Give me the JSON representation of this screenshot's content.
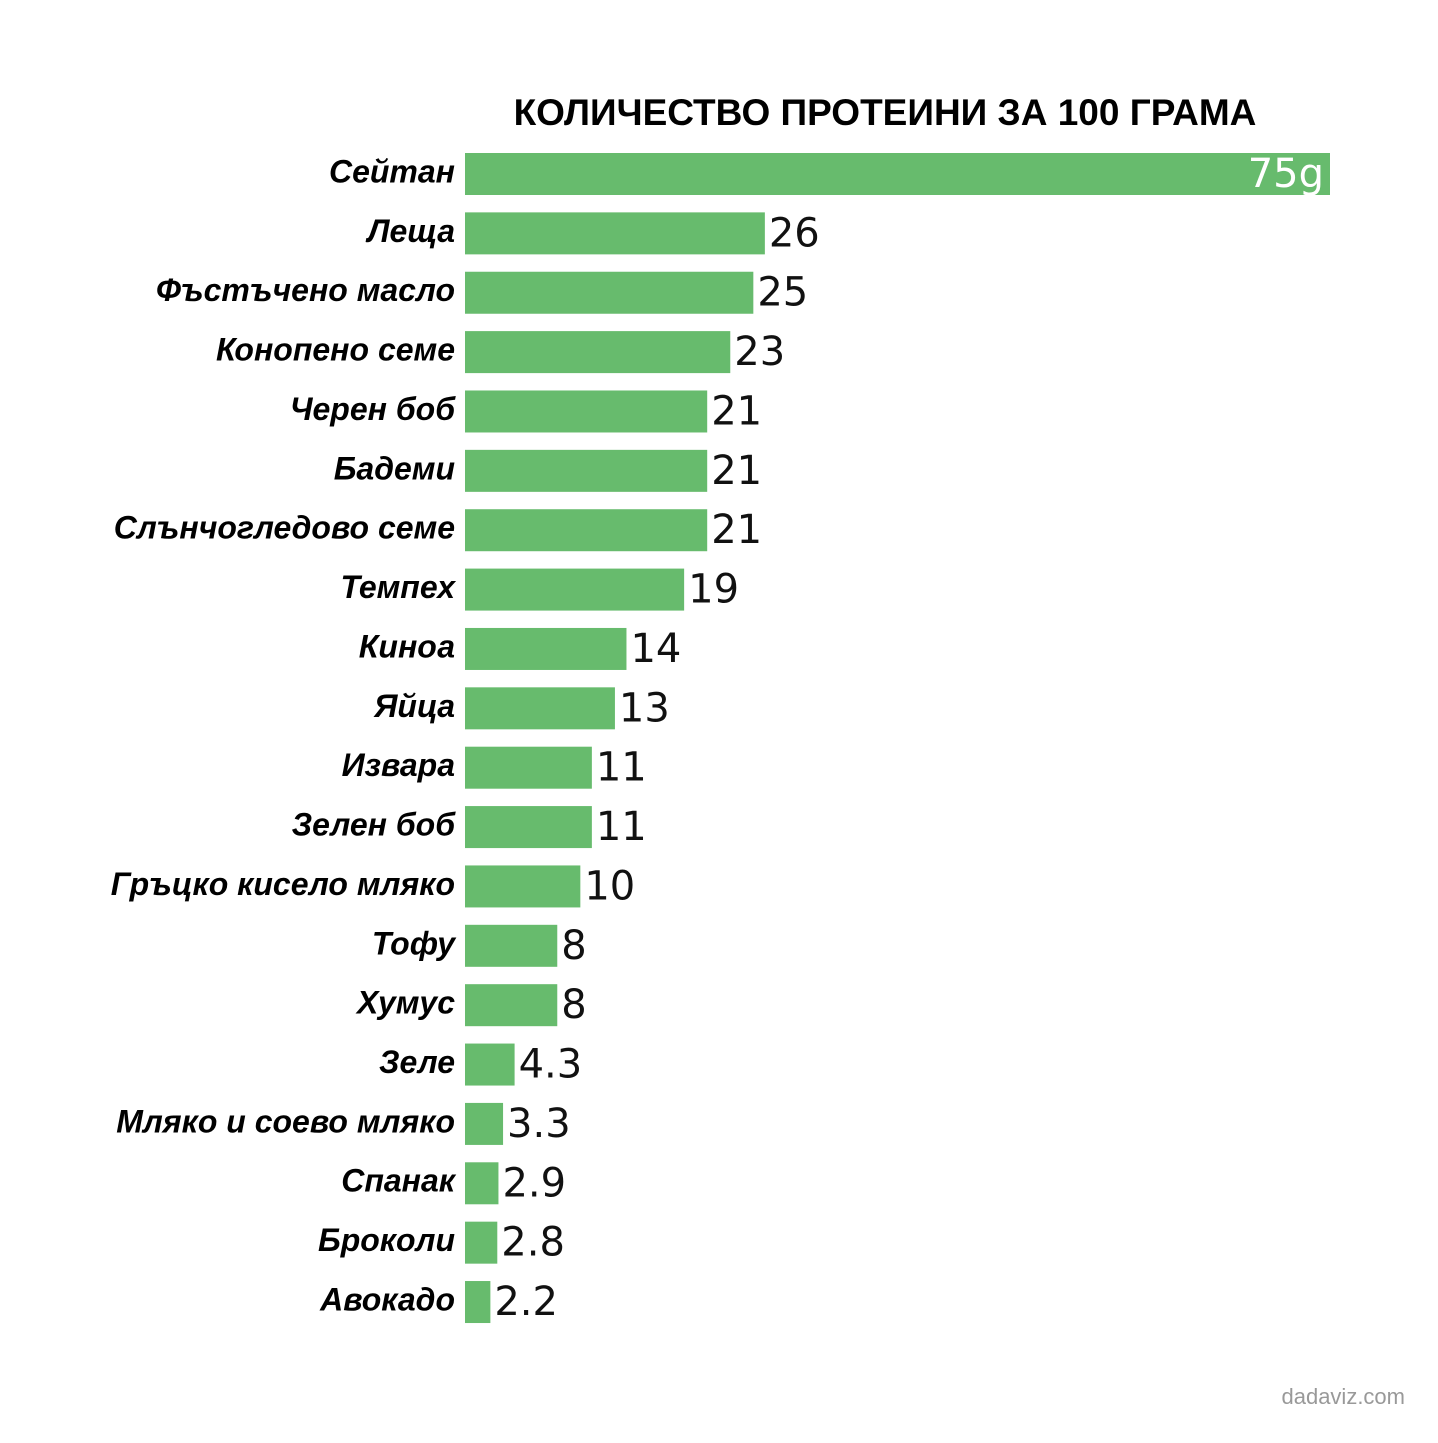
{
  "chart_data": {
    "type": "bar",
    "orientation": "horizontal",
    "title": "КОЛИЧЕСТВО ПРОТЕИНИ ЗА 100 ГРАМА",
    "categories": [
      "Сейтан",
      "Леща",
      "Фъстъчено масло",
      "Конопено семе",
      "Черен боб",
      "Бадеми",
      "Слънчогледово семе",
      "Темпех",
      "Киноа",
      "Яйца",
      "Извара",
      "Зелен боб",
      "Гръцко кисело мляко",
      "Тофу",
      "Хумус",
      "Зеле",
      "Мляко и соево мляко",
      "Спанак",
      "Броколи",
      "Авокадо"
    ],
    "values": [
      75,
      26,
      25,
      23,
      21,
      21,
      21,
      19,
      14,
      13,
      11,
      11,
      10,
      8,
      8,
      4.3,
      3.3,
      2.9,
      2.8,
      2.2
    ],
    "value_labels": [
      "75g",
      "26",
      "25",
      "23",
      "21",
      "21",
      "21",
      "19",
      "14",
      "13",
      "11",
      "11",
      "10",
      "8",
      "8",
      "4.3",
      "3.3",
      "2.9",
      "2.8",
      "2.2"
    ],
    "color": "#67bb6d",
    "xlim": [
      0,
      75
    ]
  },
  "watermark": "dadaviz.com"
}
